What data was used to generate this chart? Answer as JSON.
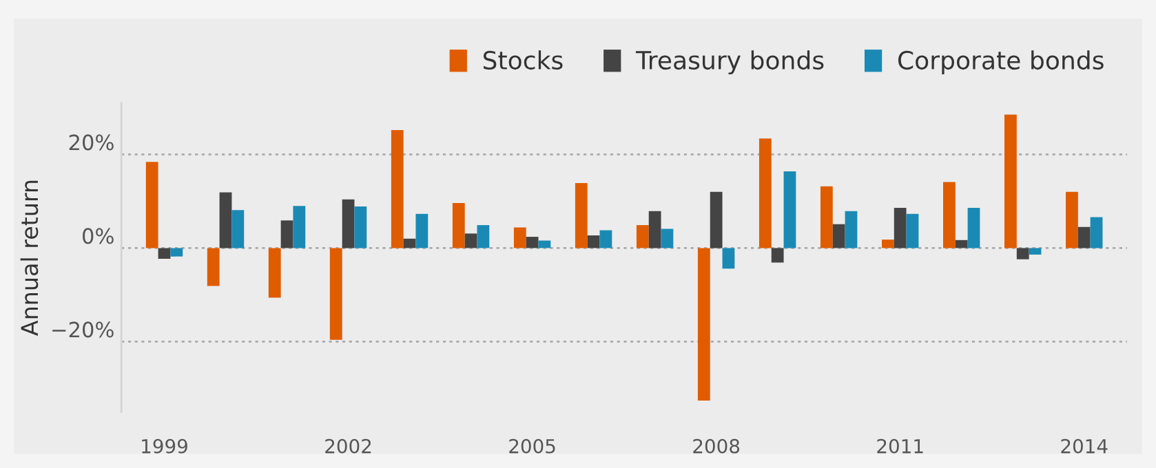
{
  "chart_data": {
    "type": "bar",
    "ylabel": "Annual return",
    "categories": [
      "1999",
      null,
      null,
      "2002",
      null,
      null,
      "2005",
      null,
      null,
      "2008",
      null,
      null,
      "2011",
      null,
      null,
      "2014"
    ],
    "series": [
      {
        "name": "Stocks",
        "color": "#e05c00",
        "values": [
          18.4,
          -8.1,
          -10.6,
          -19.6,
          25.2,
          9.6,
          4.4,
          13.9,
          4.9,
          -32.6,
          23.4,
          13.2,
          1.8,
          14.1,
          28.5,
          12.0
        ]
      },
      {
        "name": "Treasury bonds",
        "color": "#444444",
        "values": [
          -2.3,
          11.9,
          5.9,
          10.4,
          2.0,
          3.1,
          2.4,
          2.7,
          7.9,
          12.0,
          -3.1,
          5.1,
          8.6,
          1.7,
          -2.4,
          4.5
        ]
      },
      {
        "name": "Corporate bonds",
        "color": "#1a8ab5",
        "values": [
          -1.8,
          8.1,
          9.0,
          8.9,
          7.3,
          4.9,
          1.6,
          3.8,
          4.1,
          -4.4,
          16.4,
          7.9,
          7.3,
          8.6,
          -1.4,
          6.6
        ]
      }
    ],
    "ylim": [
      -35,
      31
    ],
    "yticks": [
      {
        "value": -20,
        "label": "−20%"
      },
      {
        "value": 0,
        "label": "0%"
      },
      {
        "value": 20,
        "label": "20%"
      }
    ],
    "grid": "y",
    "legend": "top right"
  }
}
